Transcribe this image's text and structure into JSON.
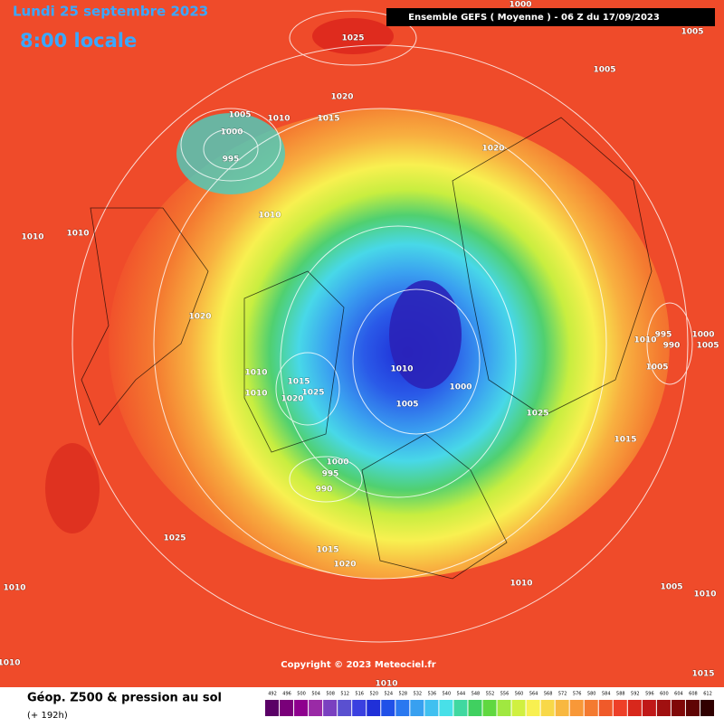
{
  "header": {
    "date": "Lundi 25 septembre 2023",
    "time": "8:00 locale",
    "model": "Ensemble GEFS  ( Moyenne )  -  06 Z du 17/09/2023"
  },
  "map": {
    "isobar_labels": [
      1000,
      1025,
      1005,
      1005,
      1020,
      1005,
      1010,
      1015,
      1000,
      995,
      1020,
      1010,
      1010,
      1010,
      1020,
      995,
      1010,
      990,
      1000,
      1005,
      1005,
      1010,
      1010,
      1010,
      1015,
      1025,
      1020,
      1005,
      1000,
      1025,
      1015,
      1000,
      995,
      990,
      1025,
      1015,
      1020,
      1010,
      1010,
      1005,
      1010,
      1010,
      1010,
      1015
    ],
    "copyright": "Copyright © 2023 Meteociel.fr"
  },
  "footer": {
    "title": "Géop. Z500 & pression au sol",
    "lead": "(+ 192h)"
  },
  "legend": {
    "values": [
      492,
      496,
      500,
      504,
      508,
      512,
      516,
      520,
      524,
      528,
      532,
      536,
      540,
      544,
      548,
      552,
      556,
      560,
      564,
      568,
      572,
      576,
      580,
      584,
      588,
      592,
      596,
      600,
      604,
      608,
      612
    ]
  }
}
